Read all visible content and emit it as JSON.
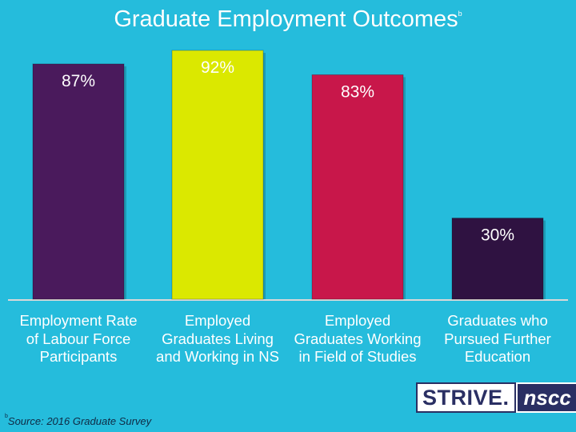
{
  "slide": {
    "title": "Graduate Employment Outcomes",
    "title_mark": "b",
    "source_mark": "b",
    "source": "Source: 2016 Graduate Survey",
    "logo": {
      "strive": "STRIVE.",
      "nscc": "nscc"
    }
  },
  "chart_data": {
    "type": "bar",
    "title": "Graduate Employment Outcomes",
    "categories": [
      "Employment Rate\nof Labour Force\nParticipants",
      "Employed\nGraduates Living\nand Working in NS",
      "Employed\nGraduates Working\nin Field of Studies",
      "Graduates who\nPursued Further\nEducation"
    ],
    "values": [
      87,
      92,
      83,
      30
    ],
    "data_labels": [
      "87%",
      "92%",
      "83%",
      "30%"
    ],
    "colors": [
      "#4a1a5c",
      "#dbe800",
      "#c8174a",
      "#2f1241"
    ],
    "label_colors": [
      "#ffffff",
      "#ffffff",
      "#ffffff",
      "#ffffff"
    ],
    "ylim": [
      0,
      100
    ],
    "grid": false,
    "legend": "none"
  }
}
